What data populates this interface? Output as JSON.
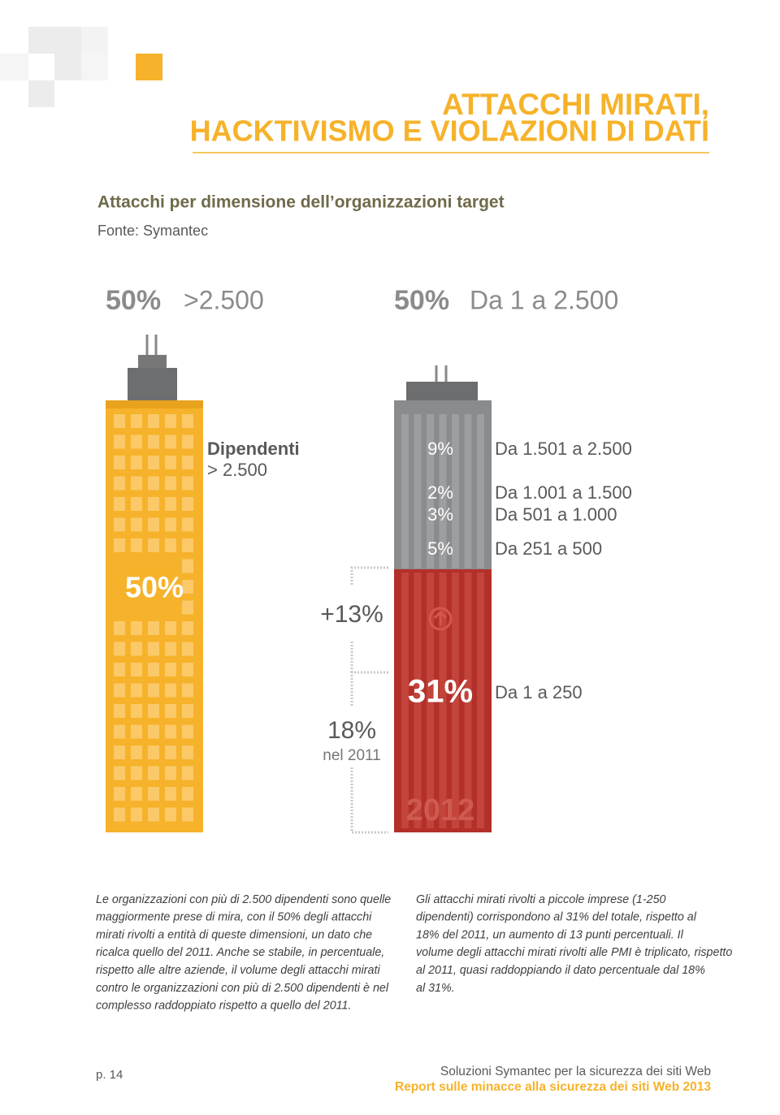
{
  "header": {
    "title_line1": "ATTACCHI MIRATI,",
    "title_line2": "HACKTIVISMO E VIOLAZIONI DI DATI"
  },
  "chart": {
    "title": "Attacchi per dimensione dell’organizzazioni target",
    "source": "Fonte: Symantec",
    "groups": [
      {
        "share": "50%",
        "label": ">2.500"
      },
      {
        "share": "50%",
        "label": "Da 1 a 2.500"
      }
    ],
    "large_building": {
      "label_line1": "Dipendenti",
      "label_line2": "> 2.500",
      "share": "50%"
    },
    "small_building": {
      "segments": [
        {
          "share": "9%",
          "label": "Da 1.501 a 2.500"
        },
        {
          "share": "2%",
          "label": "Da 1.001 a 1.500"
        },
        {
          "share": "3%",
          "label": "Da 501 a 1.000"
        },
        {
          "share": "5%",
          "label": "Da 251 a 500"
        },
        {
          "share": "31%",
          "label": "Da 1 a 250"
        }
      ],
      "year": "2012"
    },
    "comparison": {
      "increase": "+13%",
      "previous_share": "18%",
      "previous_label": "nel 2011"
    }
  },
  "body": {
    "left": [
      "Le organizzazioni con più di 2.500 dipendenti sono quelle",
      "maggiormente prese di mira, con il 50% degli attacchi",
      "mirati rivolti a entità di queste dimensioni, un dato che",
      "ricalca quello del 2011. Anche se stabile, in percentuale,",
      "rispetto alle altre aziende, il volume degli attacchi mirati",
      "contro le organizzazioni con più di 2.500 dipendenti è nel",
      "complesso raddoppiato rispetto a quello del 2011."
    ],
    "right": [
      "Gli attacchi mirati rivolti a piccole imprese (1-250",
      "dipendenti) corrispondono al 31% del totale, rispetto al",
      "18% del 2011, un aumento di 13 punti percentuali. Il",
      "volume degli attacchi mirati rivolti alle PMI è triplicato, rispetto",
      "al 2011, quasi raddoppiando il dato percentuale dal 18%",
      "al 31%."
    ]
  },
  "footer": {
    "page": "p. 14",
    "line1": "Soluzioni Symantec per la sicurezza dei siti Web",
    "line2": "Report sulle minacce alla sicurezza dei siti Web 2013"
  }
}
